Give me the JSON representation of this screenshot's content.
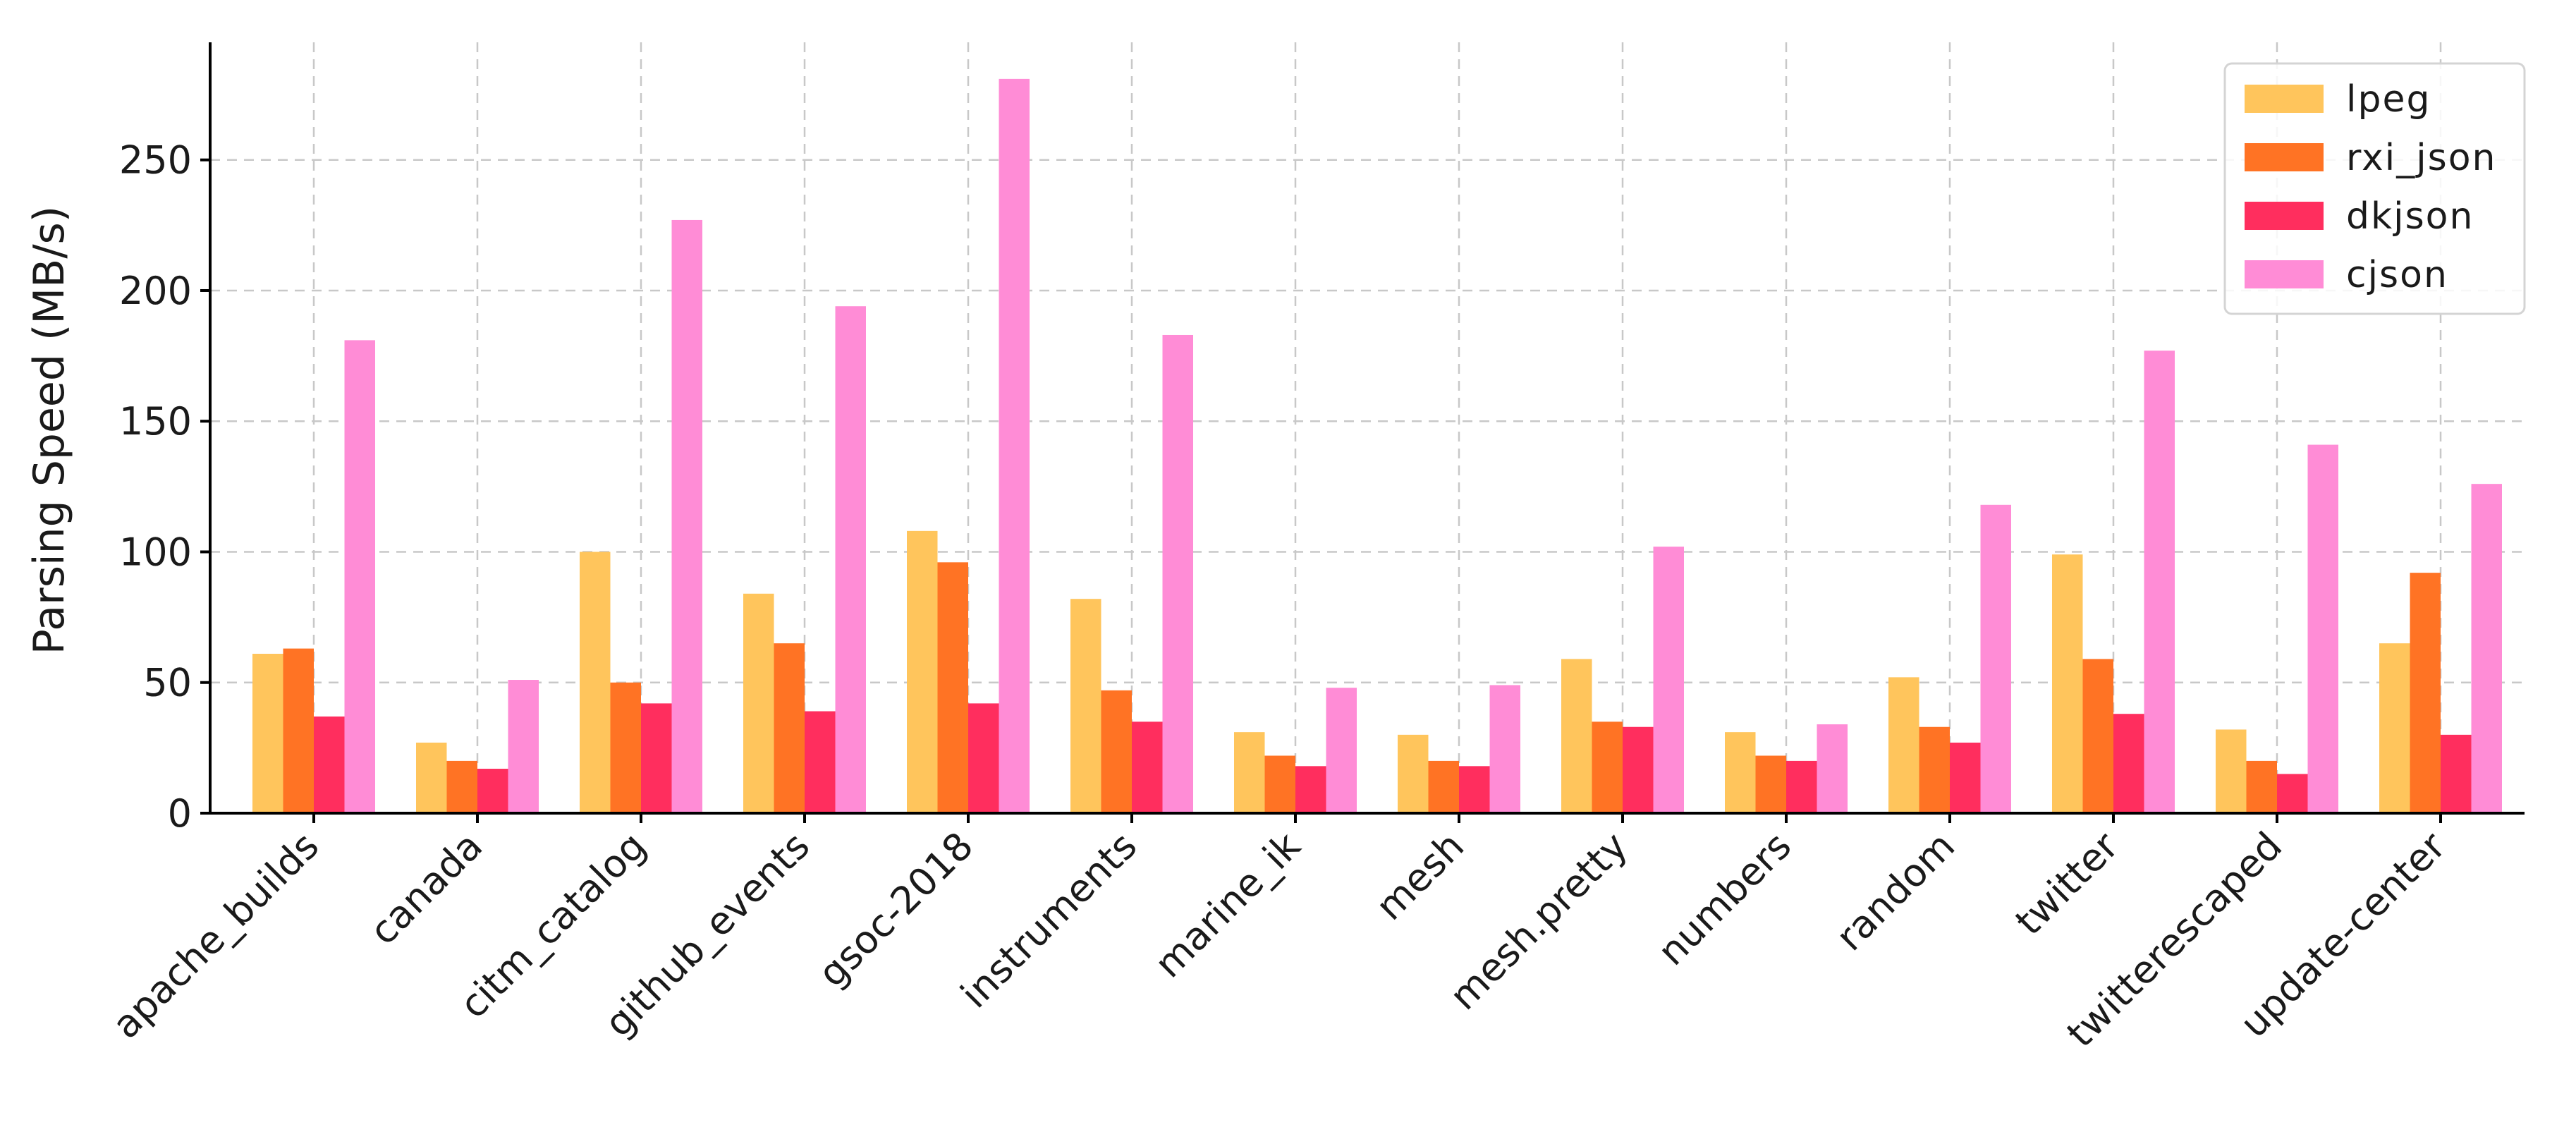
{
  "chart_data": {
    "type": "bar",
    "title": "",
    "xlabel": "",
    "ylabel": "Parsing Speed (MB/s)",
    "ylim": [
      0,
      295
    ],
    "yticks": [
      0,
      50,
      100,
      150,
      200,
      250
    ],
    "grid": true,
    "legend_position": "top-right",
    "categories": [
      "apache_builds",
      "canada",
      "citm_catalog",
      "github_events",
      "gsoc-2018",
      "instruments",
      "marine_ik",
      "mesh",
      "mesh.pretty",
      "numbers",
      "random",
      "twitter",
      "twitterescaped",
      "update-center"
    ],
    "series": [
      {
        "name": "lpeg",
        "color": "#FFC55C",
        "values": [
          61,
          27,
          100,
          84,
          108,
          82,
          31,
          30,
          59,
          31,
          52,
          99,
          32,
          65
        ]
      },
      {
        "name": "rxi_json",
        "color": "#FF7324",
        "values": [
          63,
          20,
          50,
          65,
          96,
          47,
          22,
          20,
          35,
          22,
          33,
          59,
          20,
          92
        ]
      },
      {
        "name": "dkjson",
        "color": "#FF2E5E",
        "values": [
          37,
          17,
          42,
          39,
          42,
          35,
          18,
          18,
          33,
          20,
          27,
          38,
          15,
          30
        ]
      },
      {
        "name": "cjson",
        "color": "#FF8CD6",
        "values": [
          181,
          51,
          227,
          194,
          281,
          183,
          48,
          49,
          102,
          34,
          118,
          177,
          141,
          126
        ]
      }
    ]
  }
}
